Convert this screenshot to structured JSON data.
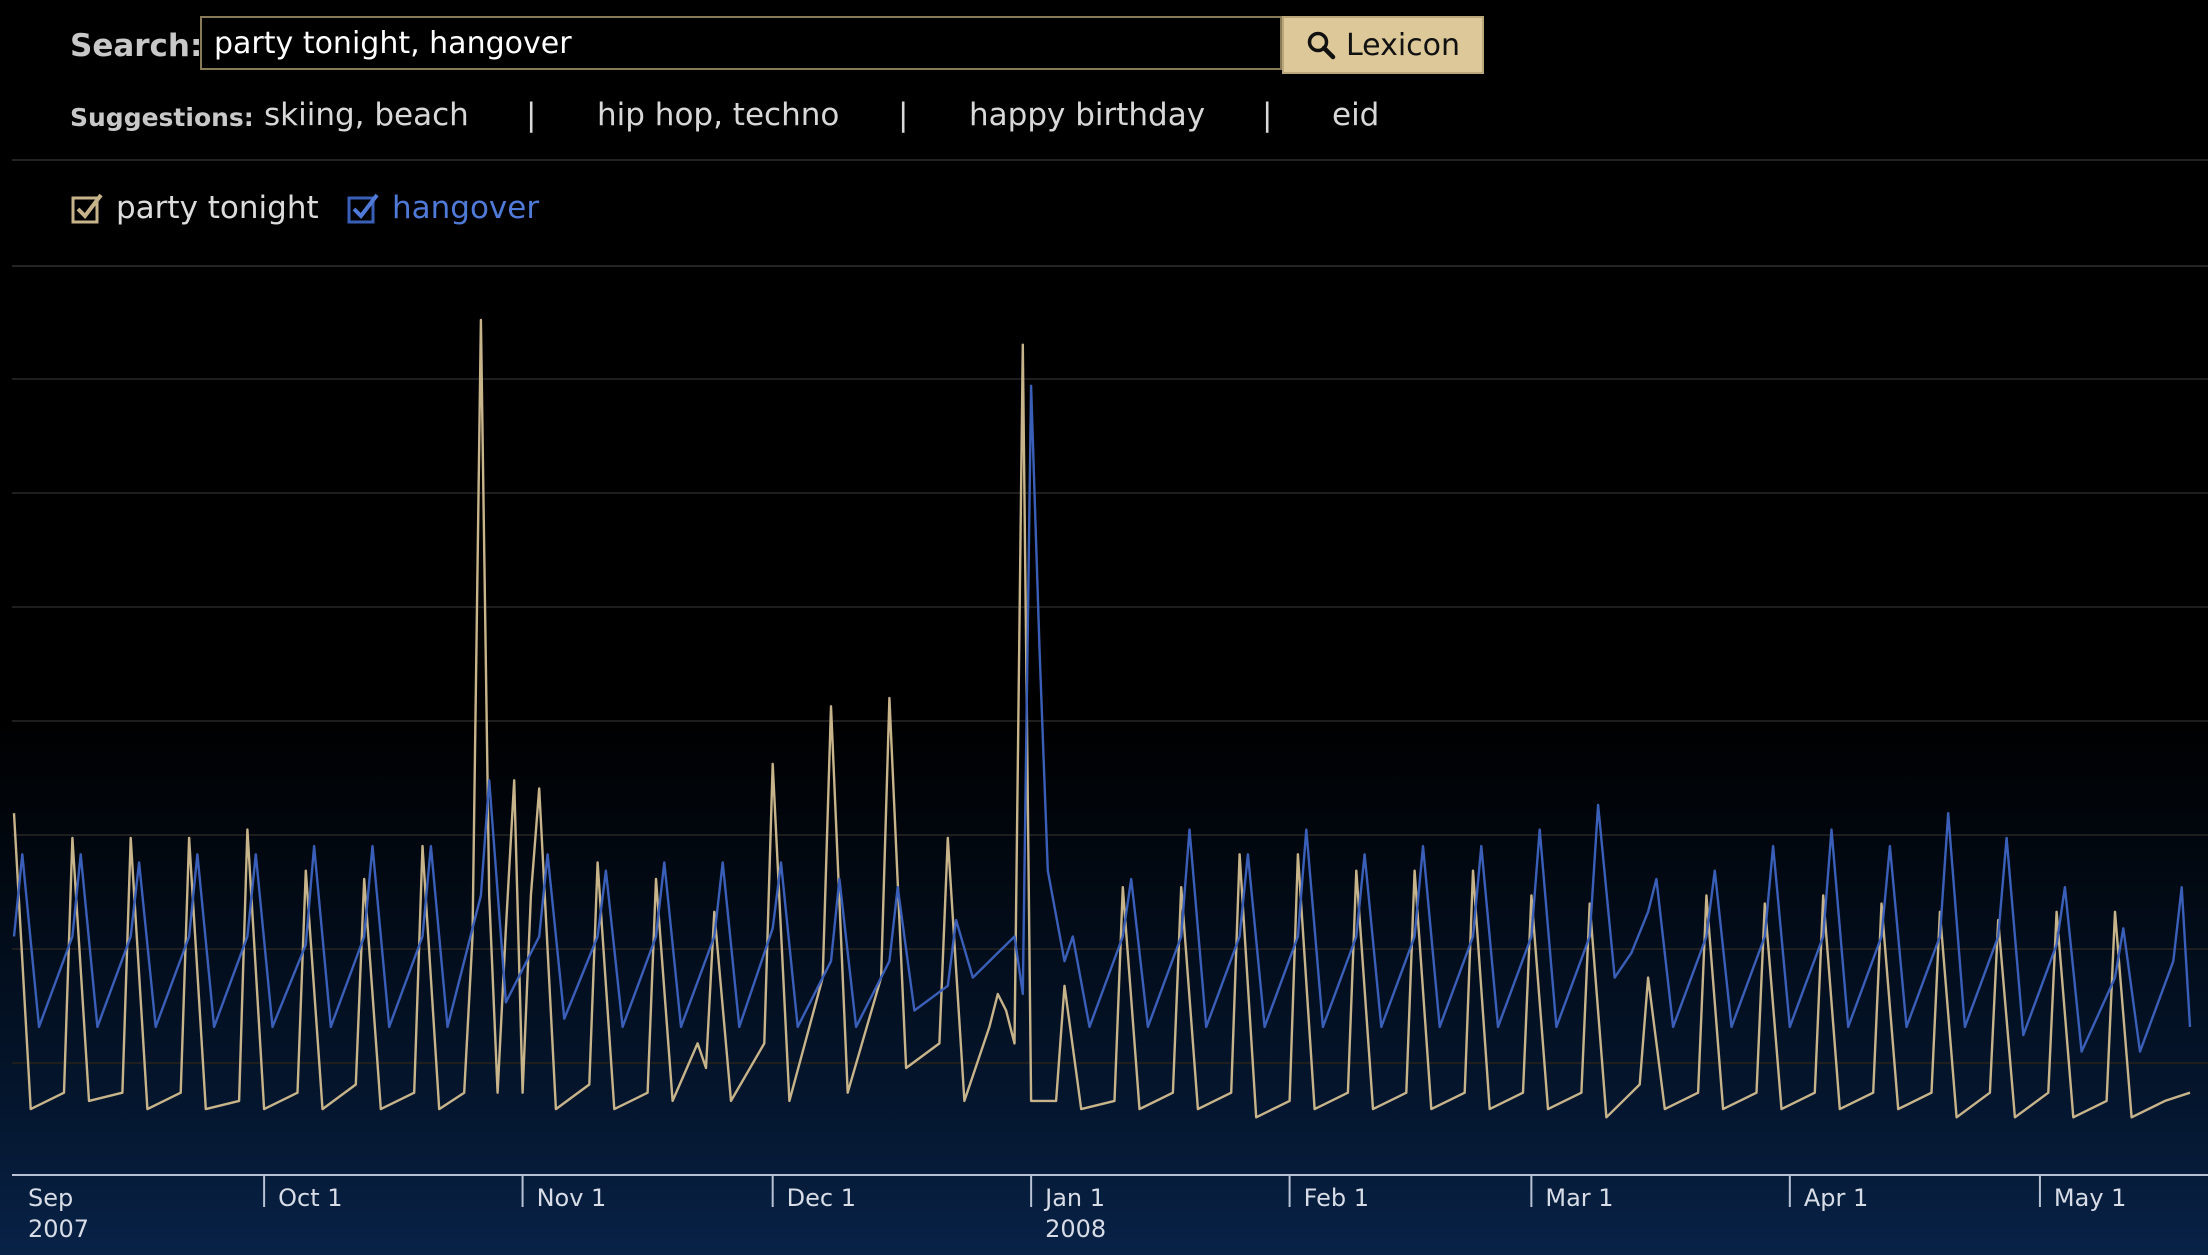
{
  "search": {
    "label": "Search:",
    "value": "party tonight, hangover",
    "button_label": "Lexicon"
  },
  "suggestions": {
    "label": "Suggestions:",
    "items": [
      "skiing, beach",
      "hip hop, techno",
      "happy birthday",
      "eid"
    ],
    "separator": "|"
  },
  "legend": [
    {
      "label": "party tonight",
      "color": "#c8b48a",
      "checked": true
    },
    {
      "label": "hangover",
      "color": "#3a5fb8",
      "checked": true
    }
  ],
  "icons": {
    "search_button": "magnifier-icon",
    "legend_checkbox": "checkbox-checked-icon"
  },
  "colors": {
    "party_tonight": "#c8b48a",
    "hangover": "#3a5fb8",
    "axis_text": "#d7dce6"
  },
  "chart_data": {
    "type": "line",
    "x_start": "2007-09-01",
    "x_end": "2008-05-19",
    "ylim": [
      0,
      100
    ],
    "grid": true,
    "legend_placement": "top-left",
    "ticks": [
      {
        "date": "2007-09-01",
        "label": "Sep",
        "sublabel": "2007"
      },
      {
        "date": "2007-10-01",
        "label": "Oct 1",
        "sublabel": ""
      },
      {
        "date": "2007-11-01",
        "label": "Nov 1",
        "sublabel": ""
      },
      {
        "date": "2007-12-01",
        "label": "Dec 1",
        "sublabel": ""
      },
      {
        "date": "2008-01-01",
        "label": "Jan 1",
        "sublabel": "2008"
      },
      {
        "date": "2008-02-01",
        "label": "Feb 1",
        "sublabel": ""
      },
      {
        "date": "2008-03-01",
        "label": "Mar 1",
        "sublabel": ""
      },
      {
        "date": "2008-04-01",
        "label": "Apr 1",
        "sublabel": ""
      },
      {
        "date": "2008-05-01",
        "label": "May 1",
        "sublabel": ""
      }
    ],
    "series": [
      {
        "name": "party tonight",
        "color": "#c8b48a",
        "points": [
          [
            "2007-09-01",
            40
          ],
          [
            "2007-09-03",
            4
          ],
          [
            "2007-09-07",
            6
          ],
          [
            "2007-09-08",
            37
          ],
          [
            "2007-09-10",
            5
          ],
          [
            "2007-09-14",
            6
          ],
          [
            "2007-09-15",
            37
          ],
          [
            "2007-09-17",
            4
          ],
          [
            "2007-09-21",
            6
          ],
          [
            "2007-09-22",
            37
          ],
          [
            "2007-09-24",
            4
          ],
          [
            "2007-09-28",
            5
          ],
          [
            "2007-09-29",
            38
          ],
          [
            "2007-10-01",
            4
          ],
          [
            "2007-10-05",
            6
          ],
          [
            "2007-10-06",
            33
          ],
          [
            "2007-10-08",
            4
          ],
          [
            "2007-10-12",
            7
          ],
          [
            "2007-10-13",
            32
          ],
          [
            "2007-10-15",
            4
          ],
          [
            "2007-10-19",
            6
          ],
          [
            "2007-10-20",
            36
          ],
          [
            "2007-10-22",
            4
          ],
          [
            "2007-10-25",
            6
          ],
          [
            "2007-10-26",
            25
          ],
          [
            "2007-10-27",
            100
          ],
          [
            "2007-10-28",
            30
          ],
          [
            "2007-10-29",
            6
          ],
          [
            "2007-10-30",
            26
          ],
          [
            "2007-10-31",
            44
          ],
          [
            "2007-11-01",
            6
          ],
          [
            "2007-11-02",
            30
          ],
          [
            "2007-11-03",
            43
          ],
          [
            "2007-11-05",
            4
          ],
          [
            "2007-11-09",
            7
          ],
          [
            "2007-11-10",
            34
          ],
          [
            "2007-11-12",
            4
          ],
          [
            "2007-11-16",
            6
          ],
          [
            "2007-11-17",
            32
          ],
          [
            "2007-11-19",
            5
          ],
          [
            "2007-11-22",
            12
          ],
          [
            "2007-11-23",
            9
          ],
          [
            "2007-11-24",
            28
          ],
          [
            "2007-11-26",
            5
          ],
          [
            "2007-11-30",
            12
          ],
          [
            "2007-12-01",
            46
          ],
          [
            "2007-12-03",
            5
          ],
          [
            "2007-12-07",
            20
          ],
          [
            "2007-12-08",
            53
          ],
          [
            "2007-12-10",
            6
          ],
          [
            "2007-12-14",
            20
          ],
          [
            "2007-12-15",
            54
          ],
          [
            "2007-12-17",
            9
          ],
          [
            "2007-12-21",
            12
          ],
          [
            "2007-12-22",
            37
          ],
          [
            "2007-12-24",
            5
          ],
          [
            "2007-12-27",
            14
          ],
          [
            "2007-12-28",
            18
          ],
          [
            "2007-12-29",
            16
          ],
          [
            "2007-12-30",
            12
          ],
          [
            "2007-12-31",
            97
          ],
          [
            "2008-01-01",
            5
          ],
          [
            "2008-01-04",
            5
          ],
          [
            "2008-01-05",
            19
          ],
          [
            "2008-01-07",
            4
          ],
          [
            "2008-01-11",
            5
          ],
          [
            "2008-01-12",
            31
          ],
          [
            "2008-01-14",
            4
          ],
          [
            "2008-01-18",
            6
          ],
          [
            "2008-01-19",
            31
          ],
          [
            "2008-01-21",
            4
          ],
          [
            "2008-01-25",
            6
          ],
          [
            "2008-01-26",
            35
          ],
          [
            "2008-01-28",
            3
          ],
          [
            "2008-02-01",
            5
          ],
          [
            "2008-02-02",
            35
          ],
          [
            "2008-02-04",
            4
          ],
          [
            "2008-02-08",
            6
          ],
          [
            "2008-02-09",
            33
          ],
          [
            "2008-02-11",
            4
          ],
          [
            "2008-02-15",
            6
          ],
          [
            "2008-02-16",
            33
          ],
          [
            "2008-02-18",
            4
          ],
          [
            "2008-02-22",
            6
          ],
          [
            "2008-02-23",
            33
          ],
          [
            "2008-02-25",
            4
          ],
          [
            "2008-02-29",
            6
          ],
          [
            "2008-03-01",
            30
          ],
          [
            "2008-03-03",
            4
          ],
          [
            "2008-03-07",
            6
          ],
          [
            "2008-03-08",
            29
          ],
          [
            "2008-03-10",
            3
          ],
          [
            "2008-03-14",
            7
          ],
          [
            "2008-03-15",
            20
          ],
          [
            "2008-03-17",
            4
          ],
          [
            "2008-03-21",
            6
          ],
          [
            "2008-03-22",
            30
          ],
          [
            "2008-03-24",
            4
          ],
          [
            "2008-03-28",
            6
          ],
          [
            "2008-03-29",
            29
          ],
          [
            "2008-03-31",
            4
          ],
          [
            "2008-04-04",
            6
          ],
          [
            "2008-04-05",
            30
          ],
          [
            "2008-04-07",
            4
          ],
          [
            "2008-04-11",
            6
          ],
          [
            "2008-04-12",
            29
          ],
          [
            "2008-04-14",
            4
          ],
          [
            "2008-04-18",
            6
          ],
          [
            "2008-04-19",
            28
          ],
          [
            "2008-04-21",
            3
          ],
          [
            "2008-04-25",
            6
          ],
          [
            "2008-04-26",
            27
          ],
          [
            "2008-04-28",
            3
          ],
          [
            "2008-05-02",
            6
          ],
          [
            "2008-05-03",
            28
          ],
          [
            "2008-05-05",
            3
          ],
          [
            "2008-05-09",
            5
          ],
          [
            "2008-05-10",
            28
          ],
          [
            "2008-05-12",
            3
          ],
          [
            "2008-05-16",
            5
          ],
          [
            "2008-05-19",
            6
          ]
        ]
      },
      {
        "name": "hangover",
        "color": "#3a5fb8",
        "points": [
          [
            "2007-09-01",
            25
          ],
          [
            "2007-09-02",
            35
          ],
          [
            "2007-09-04",
            14
          ],
          [
            "2007-09-08",
            25
          ],
          [
            "2007-09-09",
            35
          ],
          [
            "2007-09-11",
            14
          ],
          [
            "2007-09-15",
            25
          ],
          [
            "2007-09-16",
            34
          ],
          [
            "2007-09-18",
            14
          ],
          [
            "2007-09-22",
            25
          ],
          [
            "2007-09-23",
            35
          ],
          [
            "2007-09-25",
            14
          ],
          [
            "2007-09-29",
            25
          ],
          [
            "2007-09-30",
            35
          ],
          [
            "2007-10-02",
            14
          ],
          [
            "2007-10-06",
            24
          ],
          [
            "2007-10-07",
            36
          ],
          [
            "2007-10-09",
            14
          ],
          [
            "2007-10-13",
            25
          ],
          [
            "2007-10-14",
            36
          ],
          [
            "2007-10-16",
            14
          ],
          [
            "2007-10-20",
            25
          ],
          [
            "2007-10-21",
            36
          ],
          [
            "2007-10-23",
            14
          ],
          [
            "2007-10-27",
            30
          ],
          [
            "2007-10-28",
            44
          ],
          [
            "2007-10-30",
            17
          ],
          [
            "2007-11-03",
            25
          ],
          [
            "2007-11-04",
            35
          ],
          [
            "2007-11-06",
            15
          ],
          [
            "2007-11-10",
            25
          ],
          [
            "2007-11-11",
            33
          ],
          [
            "2007-11-13",
            14
          ],
          [
            "2007-11-17",
            25
          ],
          [
            "2007-11-18",
            34
          ],
          [
            "2007-11-20",
            14
          ],
          [
            "2007-11-24",
            25
          ],
          [
            "2007-11-25",
            34
          ],
          [
            "2007-11-27",
            14
          ],
          [
            "2007-12-01",
            26
          ],
          [
            "2007-12-02",
            34
          ],
          [
            "2007-12-04",
            14
          ],
          [
            "2007-12-08",
            22
          ],
          [
            "2007-12-09",
            32
          ],
          [
            "2007-12-11",
            14
          ],
          [
            "2007-12-15",
            22
          ],
          [
            "2007-12-16",
            31
          ],
          [
            "2007-12-18",
            16
          ],
          [
            "2007-12-22",
            19
          ],
          [
            "2007-12-23",
            27
          ],
          [
            "2007-12-25",
            20
          ],
          [
            "2007-12-28",
            23
          ],
          [
            "2007-12-30",
            25
          ],
          [
            "2007-12-31",
            18
          ],
          [
            "2008-01-01",
            92
          ],
          [
            "2008-01-02",
            60
          ],
          [
            "2008-01-03",
            33
          ],
          [
            "2008-01-05",
            22
          ],
          [
            "2008-01-06",
            25
          ],
          [
            "2008-01-08",
            14
          ],
          [
            "2008-01-12",
            25
          ],
          [
            "2008-01-13",
            32
          ],
          [
            "2008-01-15",
            14
          ],
          [
            "2008-01-19",
            25
          ],
          [
            "2008-01-20",
            38
          ],
          [
            "2008-01-22",
            14
          ],
          [
            "2008-01-26",
            25
          ],
          [
            "2008-01-27",
            35
          ],
          [
            "2008-01-29",
            14
          ],
          [
            "2008-02-02",
            25
          ],
          [
            "2008-02-03",
            38
          ],
          [
            "2008-02-05",
            14
          ],
          [
            "2008-02-09",
            25
          ],
          [
            "2008-02-10",
            35
          ],
          [
            "2008-02-12",
            14
          ],
          [
            "2008-02-16",
            25
          ],
          [
            "2008-02-17",
            36
          ],
          [
            "2008-02-19",
            14
          ],
          [
            "2008-02-23",
            25
          ],
          [
            "2008-02-24",
            36
          ],
          [
            "2008-02-26",
            14
          ],
          [
            "2008-03-01",
            25
          ],
          [
            "2008-03-02",
            38
          ],
          [
            "2008-03-04",
            14
          ],
          [
            "2008-03-08",
            25
          ],
          [
            "2008-03-09",
            41
          ],
          [
            "2008-03-11",
            20
          ],
          [
            "2008-03-13",
            23
          ],
          [
            "2008-03-15",
            28
          ],
          [
            "2008-03-16",
            32
          ],
          [
            "2008-03-18",
            14
          ],
          [
            "2008-03-22",
            25
          ],
          [
            "2008-03-23",
            33
          ],
          [
            "2008-03-25",
            14
          ],
          [
            "2008-03-29",
            25
          ],
          [
            "2008-03-30",
            36
          ],
          [
            "2008-04-01",
            14
          ],
          [
            "2008-04-05",
            25
          ],
          [
            "2008-04-06",
            38
          ],
          [
            "2008-04-08",
            14
          ],
          [
            "2008-04-12",
            25
          ],
          [
            "2008-04-13",
            36
          ],
          [
            "2008-04-15",
            14
          ],
          [
            "2008-04-19",
            25
          ],
          [
            "2008-04-20",
            40
          ],
          [
            "2008-04-22",
            14
          ],
          [
            "2008-04-26",
            25
          ],
          [
            "2008-04-27",
            37
          ],
          [
            "2008-04-29",
            13
          ],
          [
            "2008-05-03",
            24
          ],
          [
            "2008-05-04",
            31
          ],
          [
            "2008-05-06",
            11
          ],
          [
            "2008-05-10",
            20
          ],
          [
            "2008-05-11",
            26
          ],
          [
            "2008-05-13",
            11
          ],
          [
            "2008-05-17",
            22
          ],
          [
            "2008-05-18",
            31
          ],
          [
            "2008-05-19",
            14
          ]
        ]
      }
    ]
  }
}
